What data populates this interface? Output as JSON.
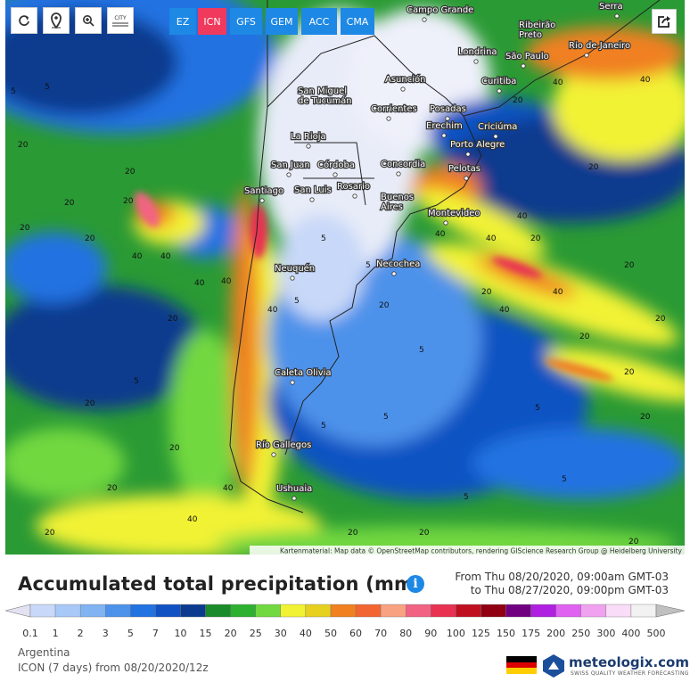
{
  "toolbar": {
    "city_icon": "CITY",
    "models": [
      "EZ",
      "ICN",
      "GFS",
      "GEM",
      "ACC",
      "CMA"
    ],
    "selected": "ICN"
  },
  "cities": [
    [
      "Campo Grande"
    ],
    [
      "Serra"
    ],
    [
      "Ribeirão",
      "Preto"
    ],
    [
      "Londrina"
    ],
    [
      "São Paulo"
    ],
    [
      "Rio de Janeiro"
    ],
    [
      "Asunción"
    ],
    [
      "Curitiba"
    ],
    [
      "San Miguel",
      "de Tucumán"
    ],
    [
      "Corrientes"
    ],
    [
      "Posadas"
    ],
    [
      "Erechim"
    ],
    [
      "Criciúma"
    ],
    [
      "La Rioja"
    ],
    [
      "Porto Alegre"
    ],
    [
      "San Juan"
    ],
    [
      "Córdoba"
    ],
    [
      "Concordia"
    ],
    [
      "Pelotas"
    ],
    [
      "Santiago"
    ],
    [
      "San Luis"
    ],
    [
      "Rosario"
    ],
    [
      "Buenos",
      "Aires"
    ],
    [
      "Montevideo"
    ],
    [
      "Neuquén"
    ],
    [
      "Necochea"
    ],
    [
      "Caleta Olivia"
    ],
    [
      "Río Gallegos"
    ],
    [
      "Ushuaia"
    ]
  ],
  "contour_labels": [
    5,
    5,
    20,
    20,
    20,
    20,
    20,
    20,
    40,
    40,
    40,
    40,
    20,
    5,
    20,
    20,
    20,
    20,
    40,
    40,
    40,
    5,
    5,
    5,
    20,
    40,
    5,
    20,
    40,
    40,
    20,
    20,
    20,
    5,
    5,
    5,
    5,
    5,
    40,
    20,
    20,
    20,
    20,
    40,
    40,
    20,
    40,
    20,
    20,
    20
  ],
  "attribution": "Kartenmaterial: Map data © OpenStreetMap contributors, rendering GIScience Research Group @ Heidelberg University",
  "title": "Accumulated total precipitation (mm)",
  "info": "i",
  "from": "From Thu 08/20/2020, 09:00am GMT-03",
  "to": "to Thu 08/27/2020, 09:00pm GMT-03",
  "region": "Argentina",
  "run": "ICON (7 days) from 08/20/2020/12z",
  "brand": "meteologix.com",
  "tagline": "SWISS QUALITY WEATHER FORECASTING",
  "legend": {
    "values": [
      0.1,
      1,
      2,
      3,
      5,
      7,
      10,
      15,
      20,
      25,
      30,
      40,
      50,
      60,
      70,
      80,
      90,
      100,
      125,
      150,
      175,
      200,
      250,
      300,
      400,
      500
    ],
    "colors": [
      "#e2e2f2",
      "#c8d8f8",
      "#a8c8f8",
      "#7fb3f2",
      "#4d92ea",
      "#2272e2",
      "#1052c2",
      "#0b3a8e",
      "#1a8a2a",
      "#2eb030",
      "#72d840",
      "#f2f234",
      "#e6d020",
      "#f08020",
      "#f26432",
      "#f8a282",
      "#f26282",
      "#e83252",
      "#c01020",
      "#900012",
      "#700080",
      "#b020e0",
      "#e062f0",
      "#f0a2f0",
      "#f8dcf8",
      "#f2f2f2",
      "#c0c0c0"
    ]
  }
}
